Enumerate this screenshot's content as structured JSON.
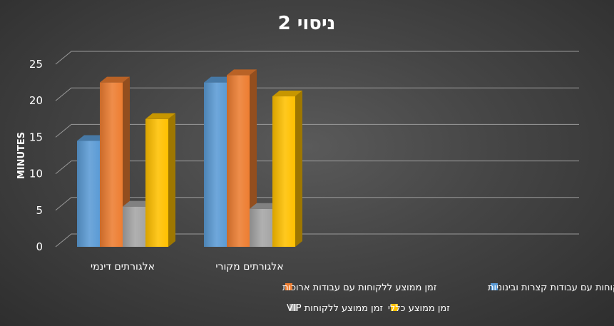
{
  "chart_data": {
    "type": "bar",
    "title": "ניסוי 2",
    "ylabel": "MINUTES",
    "xlabel": "",
    "ylim": [
      0,
      25
    ],
    "yticks": [
      0,
      5,
      10,
      15,
      20,
      25
    ],
    "categories": [
      "אלגורתים דינמי",
      "אלגורתים מקורי"
    ],
    "series": [
      {
        "name": "זמן ממוצע ללקוחות עם עבודות קצרות ובינוניות",
        "values": [
          14.5,
          22.5
        ],
        "color": "#5b9bd5"
      },
      {
        "name": "זמן ממוצע ללקוחות עם עבודות ארוכות",
        "values": [
          22.5,
          23.5
        ],
        "color": "#ed7d31"
      },
      {
        "name": "זמן ממוצע ללקוחות VIP",
        "values": [
          5.5,
          5.2
        ],
        "color": "#a5a5a5"
      },
      {
        "name": "זמן ממוצע כללי",
        "values": [
          17.5,
          20.6
        ],
        "color": "#ffc000"
      }
    ],
    "grid": true,
    "legend_position": "bottom",
    "bar_style": "3d"
  }
}
